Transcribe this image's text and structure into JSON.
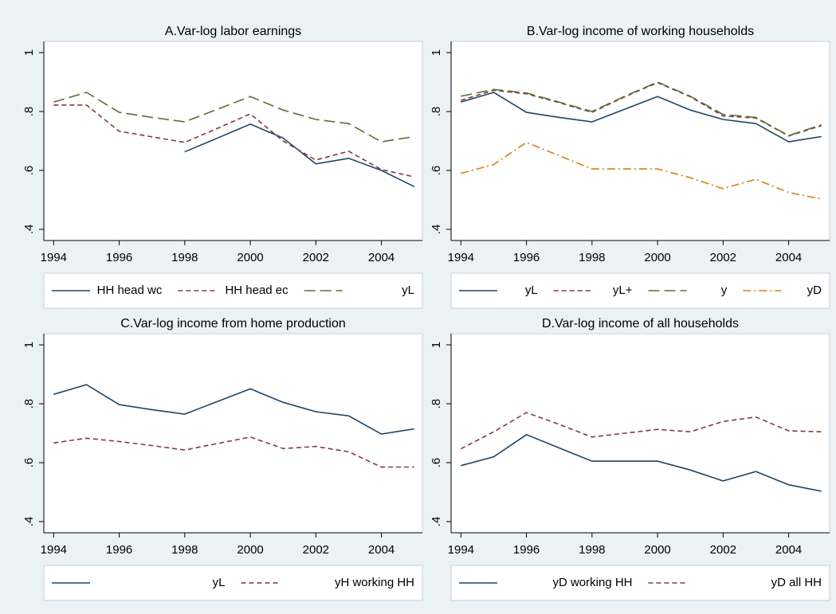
{
  "chart_data": [
    {
      "type": "line",
      "title": "A.Var-log labor earnings",
      "x": [
        1994,
        1995,
        1996,
        1997,
        1998,
        1999,
        2000,
        2001,
        2002,
        2003,
        2004,
        2005
      ],
      "xlim": [
        1993.7,
        2005.25
      ],
      "xticks": [
        1994,
        1996,
        1998,
        2000,
        2002,
        2004
      ],
      "ylim": [
        0.362,
        1.038
      ],
      "yticks": [
        {
          "value": 0.4,
          "label": ".4"
        },
        {
          "value": 0.6,
          "label": ".6"
        },
        {
          "value": 0.8,
          "label": ".8"
        },
        {
          "value": 1,
          "label": "1"
        }
      ],
      "series": [
        {
          "name": "HH head wc",
          "color": "#1a476f",
          "dash": "solid",
          "values": [
            null,
            null,
            null,
            null,
            0.663,
            0.71,
            0.757,
            0.71,
            0.622,
            0.641,
            0.6,
            0.545
          ]
        },
        {
          "name": "HH head ec",
          "color": "#90353b",
          "dash": "dashed",
          "values": [
            0.822,
            0.822,
            0.733,
            0.714,
            0.695,
            0.743,
            0.792,
            0.7,
            0.635,
            0.665,
            0.603,
            0.578
          ]
        },
        {
          "name": "yL",
          "color": "#55752f",
          "dash": "longdash",
          "values": [
            0.832,
            0.865,
            0.797,
            0.78,
            0.765,
            0.808,
            0.851,
            0.805,
            0.773,
            0.759,
            0.697,
            0.715
          ]
        }
      ]
    },
    {
      "type": "line",
      "title": "B.Var-log income of working households",
      "x": [
        1994,
        1995,
        1996,
        1997,
        1998,
        1999,
        2000,
        2001,
        2002,
        2003,
        2004,
        2005
      ],
      "xlim": [
        1993.7,
        2005.25
      ],
      "xticks": [
        1994,
        1996,
        1998,
        2000,
        2002,
        2004
      ],
      "ylim": [
        0.362,
        1.038
      ],
      "yticks": [
        {
          "value": 0.4,
          "label": ".4"
        },
        {
          "value": 0.6,
          "label": ".6"
        },
        {
          "value": 0.8,
          "label": ".8"
        },
        {
          "value": 1,
          "label": "1"
        }
      ],
      "series": [
        {
          "name": "yL",
          "color": "#1a476f",
          "dash": "solid",
          "values": [
            0.832,
            0.865,
            0.797,
            0.78,
            0.765,
            0.808,
            0.851,
            0.805,
            0.773,
            0.759,
            0.697,
            0.715
          ]
        },
        {
          "name": "yL+",
          "color": "#90353b",
          "dash": "dashed",
          "values": [
            0.838,
            0.872,
            0.86,
            0.83,
            0.797,
            0.85,
            0.898,
            0.85,
            0.785,
            0.778,
            0.717,
            0.752
          ]
        },
        {
          "name": "y",
          "color": "#55752f",
          "dash": "longdash",
          "values": [
            0.852,
            0.875,
            0.863,
            0.832,
            0.8,
            0.852,
            0.9,
            0.852,
            0.79,
            0.78,
            0.718,
            0.755
          ]
        },
        {
          "name": "yD",
          "color": "#e37e00",
          "dash": "dashdot",
          "values": [
            0.59,
            0.62,
            0.695,
            0.65,
            0.605,
            0.605,
            0.605,
            0.575,
            0.538,
            0.57,
            0.525,
            0.503
          ]
        }
      ]
    },
    {
      "type": "line",
      "title": "C.Var-log income from home production",
      "x": [
        1994,
        1995,
        1996,
        1997,
        1998,
        1999,
        2000,
        2001,
        2002,
        2003,
        2004,
        2005
      ],
      "xlim": [
        1993.7,
        2005.25
      ],
      "xticks": [
        1994,
        1996,
        1998,
        2000,
        2002,
        2004
      ],
      "ylim": [
        0.362,
        1.038
      ],
      "yticks": [
        {
          "value": 0.4,
          "label": ".4"
        },
        {
          "value": 0.6,
          "label": ".6"
        },
        {
          "value": 0.8,
          "label": ".8"
        },
        {
          "value": 1,
          "label": "1"
        }
      ],
      "series": [
        {
          "name": "yL",
          "color": "#1a476f",
          "dash": "solid",
          "values": [
            0.832,
            0.865,
            0.797,
            0.78,
            0.765,
            0.808,
            0.851,
            0.805,
            0.773,
            0.759,
            0.697,
            0.715
          ]
        },
        {
          "name": "yH working HH",
          "color": "#90353b",
          "dash": "dashed",
          "values": [
            0.667,
            0.683,
            0.672,
            0.658,
            0.643,
            0.665,
            0.687,
            0.648,
            0.655,
            0.637,
            0.585,
            0.585
          ]
        }
      ]
    },
    {
      "type": "line",
      "title": "D.Var-log income of all households",
      "x": [
        1994,
        1995,
        1996,
        1997,
        1998,
        1999,
        2000,
        2001,
        2002,
        2003,
        2004,
        2005
      ],
      "xlim": [
        1993.7,
        2005.25
      ],
      "xticks": [
        1994,
        1996,
        1998,
        2000,
        2002,
        2004
      ],
      "ylim": [
        0.362,
        1.038
      ],
      "yticks": [
        {
          "value": 0.4,
          "label": ".4"
        },
        {
          "value": 0.6,
          "label": ".6"
        },
        {
          "value": 0.8,
          "label": ".8"
        },
        {
          "value": 1,
          "label": "1"
        }
      ],
      "series": [
        {
          "name": "yD working HH",
          "color": "#1a476f",
          "dash": "solid",
          "values": [
            0.59,
            0.62,
            0.695,
            0.65,
            0.605,
            0.605,
            0.605,
            0.575,
            0.538,
            0.57,
            0.525,
            0.503
          ]
        },
        {
          "name": "yD all HH",
          "color": "#90353b",
          "dash": "dashed",
          "values": [
            0.647,
            0.705,
            0.77,
            0.73,
            0.687,
            0.7,
            0.713,
            0.705,
            0.74,
            0.755,
            0.708,
            0.705
          ]
        }
      ]
    }
  ]
}
